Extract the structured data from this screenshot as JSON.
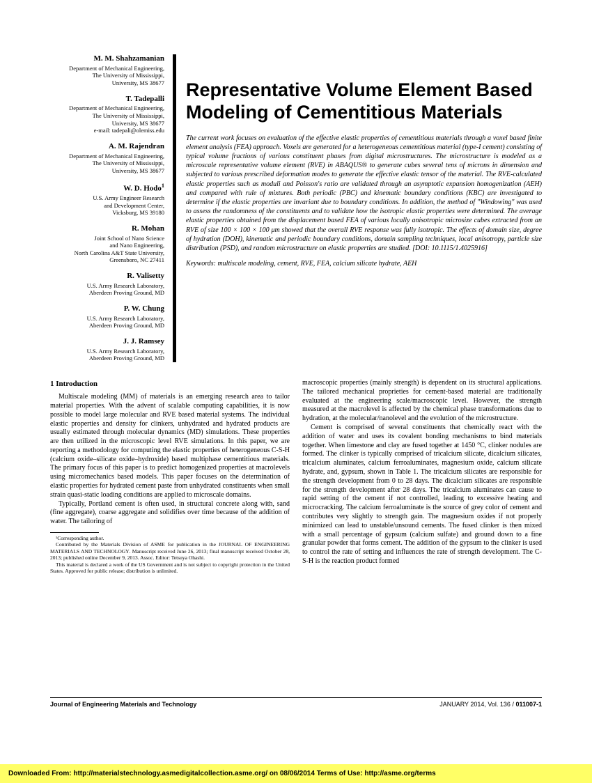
{
  "authors": [
    {
      "name": "M. M. Shahzamanian",
      "aff": "Department of Mechanical Engineering,\nThe University of Mississippi,\nUniversity, MS 38677"
    },
    {
      "name": "T. Tadepalli",
      "aff": "Department of Mechanical Engineering,\nThe University of Mississippi,\nUniversity, MS 38677\ne-mail: tadepali@olemiss.edu"
    },
    {
      "name": "A. M. Rajendran",
      "aff": "Department of Mechanical Engineering,\nThe University of Mississippi,\nUniversity, MS 38677"
    },
    {
      "name": "W. D. Hodo",
      "sup": "1",
      "aff": "U.S. Army Engineer Research\nand Development Center,\nVicksburg, MS 39180"
    },
    {
      "name": "R. Mohan",
      "aff": "Joint School of Nano Science\nand Nano Engineering,\nNorth Carolina A&T State University,\nGreensboro, NC 27411"
    },
    {
      "name": "R. Valisetty",
      "aff": "U.S. Army Research Laboratory,\nAberdeen Proving Ground, MD"
    },
    {
      "name": "P. W. Chung",
      "aff": "U.S. Army Research Laboratory,\nAberdeen Proving Ground, MD"
    },
    {
      "name": "J. J. Ramsey",
      "aff": "U.S. Army Research Laboratory,\nAberdeen Proving Ground, MD"
    }
  ],
  "title": "Representative Volume Element Based Modeling of Cementitious Materials",
  "abstract": "The current work focuses on evaluation of the effective elastic properties of cementitious materials through a voxel based finite element analysis (FEA) approach. Voxels are generated for a heterogeneous cementitious material (type-I cement) consisting of typical volume fractions of various constituent phases from digital microstructures. The microstructure is modeled as a microscale representative volume element (RVE) in ABAQUS® to generate cubes several tens of microns in dimension and subjected to various prescribed deformation modes to generate the effective elastic tensor of the material. The RVE-calculated elastic properties such as moduli and Poisson's ratio are validated through an asymptotic expansion homogenization (AEH) and compared with rule of mixtures. Both periodic (PBC) and kinematic boundary conditions (KBC) are investigated to determine if the elastic properties are invariant due to boundary conditions. In addition, the method of \"Windowing\" was used to assess the randomness of the constituents and to validate how the isotropic elastic properties were determined. The average elastic properties obtained from the displacement based FEA of various locally anisotropic microsize cubes extracted from an RVE of size 100 × 100 × 100 μm showed that the overall RVE response was fully isotropic. The effects of domain size, degree of hydration (DOH), kinematic and periodic boundary conditions, domain sampling techniques, local anisotropy, particle size distribution (PSD), and random microstructure on elastic properties are studied. [DOI: 10.1115/1.4025916]",
  "keywords": "Keywords: multiscale modeling, cement, RVE, FEA, calcium silicate hydrate, AEH",
  "section_heading": "1   Introduction",
  "col1_p1": "Multiscale modeling (MM) of materials is an emerging research area to tailor material properties. With the advent of scalable computing capabilities, it is now possible to model large molecular and RVE based material systems. The individual elastic properties and density for clinkers, unhydrated and hydrated products are usually estimated through molecular dynamics (MD) simulations. These properties are then utilized in the microscopic level RVE simulations. In this paper, we are reporting a methodology for computing the elastic properties of heterogeneous C-S-H (calcium oxide–silicate oxide–hydroxide) based multiphase cementitious materials. The primary focus of this paper is to predict homogenized properties at macrolevels using micromechanics based models. This paper focuses on the determination of elastic properties for hydrated cement paste from unhydrated constituents when small strain quasi-static loading conditions are applied to microscale domains.",
  "col1_p2": "Typically, Portland cement is often used, in structural concrete along with, sand (fine aggregate), coarse aggregate and solidifies over time because of the addition of water. The tailoring of",
  "fn1": "¹Corresponding author.",
  "fn2_a": "Contributed by the Materials Division of ASME for publication in the J",
  "fn2_b": "OURNAL OF",
  "fn2_c": " E",
  "fn2_d": "NGINEERING",
  "fn2_e": " M",
  "fn2_f": "ATERIALS AND",
  "fn2_g": " T",
  "fn2_h": "ECHNOLOGY",
  "fn2_i": ". Manuscript received June 26, 2013; final manuscript received October 28, 2013; published online December 9, 2013. Assoc. Editor: Tetsuya Ohashi.",
  "fn3": "This material is declared a work of the US Government and is not subject to copyright protection in the United States. Approved for public release; distribution is unlimited.",
  "col2_p1": "macroscopic properties (mainly strength) is dependent on its structural applications. The tailored mechanical proprieties for cement-based material are traditionally evaluated at the engineering scale/macroscopic level. However, the strength measured at the macrolevel is affected by the chemical phase transformations due to hydration, at the molecular/nanolevel and the evolution of the microstructure.",
  "col2_p2": "Cement is comprised of several constituents that chemically react with the addition of water and uses its covalent bonding mechanisms to bind materials together. When limestone and clay are fused together at 1450 °C, clinker nodules are formed. The clinker is typically comprised of tricalcium silicate, dicalcium silicates, tricalcium aluminates, calcium ferroaluminates, magnesium oxide, calcium silicate hydrate, and, gypsum, shown in Table 1. The tricalcium silicates are responsible for the strength development from 0 to 28 days. The dicalcium silicates are responsible for the strength development after 28 days. The tricalcium aluminates can cause to rapid setting of the cement if not controlled, leading to excessive heating and microcracking. The calcium ferroaluminate is the source of grey color of cement and contributes very slightly to strength gain. The magnesium oxides if not properly minimized can lead to unstable/unsound cements. The fused clinker is then mixed with a small percentage of gypsum (calcium sulfate) and ground down to a fine granular powder that forms cement. The addition of the gypsum to the clinker is used to control the rate of setting and influences the rate of strength development. The C-S-H is the reaction product formed",
  "footer_left": "Journal of Engineering Materials and Technology",
  "footer_right_a": "JANUARY 2014, Vol. 136 / ",
  "footer_right_b": "011007-1",
  "download": "Downloaded From: http://materialstechnology.asmedigitalcollection.asme.org/ on 08/06/2014 Terms of Use: http://asme.org/terms"
}
